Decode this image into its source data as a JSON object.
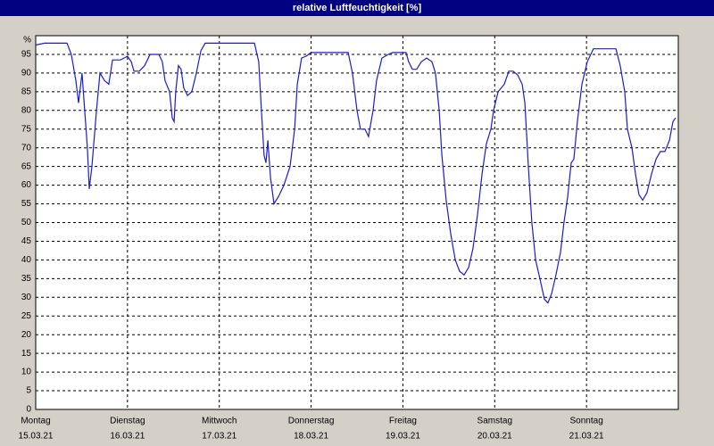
{
  "chart_data": {
    "type": "line",
    "title": "relative Luftfeuchtigkeit [%]",
    "y_unit": "%",
    "xlim": [
      0,
      168
    ],
    "xticks": [
      {
        "value": 0,
        "label": "Montag",
        "date": "15.03.21"
      },
      {
        "value": 24,
        "label": "Dienstag",
        "date": "16.03.21"
      },
      {
        "value": 48,
        "label": "Mittwoch",
        "date": "17.03.21"
      },
      {
        "value": 72,
        "label": "Donnerstag",
        "date": "18.03.21"
      },
      {
        "value": 96,
        "label": "Freitag",
        "date": "19.03.21"
      },
      {
        "value": 120,
        "label": "Samstag",
        "date": "20.03.21"
      },
      {
        "value": 144,
        "label": "Sonntag",
        "date": "21.03.21"
      }
    ],
    "ylim": [
      0,
      100
    ],
    "yticks": [
      0,
      5,
      10,
      15,
      20,
      25,
      30,
      35,
      40,
      45,
      50,
      55,
      60,
      65,
      70,
      75,
      80,
      85,
      90,
      95
    ],
    "grid": true,
    "series": [
      {
        "color": "#1c1cd0",
        "x": [
          0,
          2.3,
          8.2,
          9.3,
          10.5,
          11.2,
          12.1,
          12.8,
          13.5,
          14,
          14.7,
          15.9,
          16.8,
          18,
          19.1,
          20.1,
          22.2,
          24,
          25,
          25.7,
          27.1,
          28.5,
          29.9,
          32.2,
          33.1,
          33.8,
          35,
          35.7,
          36.2,
          36.6,
          37.3,
          38,
          38.7,
          39.7,
          40.8,
          42,
          43.2,
          44.3,
          57.2,
          58.3,
          59,
          59.7,
          60.2,
          60.7,
          61.4,
          62.3,
          63.5,
          64.9,
          66.5,
          67.7,
          68.4,
          69.5,
          70.7,
          72,
          81.7,
          82.8,
          84,
          84.9,
          86.1,
          87,
          88.2,
          89.1,
          90.5,
          92.2,
          93.3,
          96.8,
          97.5,
          98.5,
          99.6,
          100.8,
          102.2,
          103.6,
          104.5,
          105.5,
          106.2,
          107.3,
          108.5,
          109.7,
          110.8,
          112,
          113.2,
          114.3,
          115.5,
          116.7,
          117.8,
          119,
          119.7,
          120.9,
          122.5,
          123.7,
          124.8,
          126,
          127.2,
          127.9,
          128.8,
          129.7,
          130.7,
          131.8,
          133,
          133.9,
          134.9,
          136,
          137.2,
          138.1,
          139.1,
          140,
          140.7,
          141.6,
          142.8,
          144.2,
          145.8,
          151.7,
          152.8,
          154,
          154.7,
          155.9,
          156.8,
          157.7,
          158.7,
          159.8,
          161,
          162.2,
          163.3,
          164.5,
          165.7,
          166.6,
          167.3
        ],
        "values": [
          97.5,
          98,
          98,
          95,
          88,
          82,
          90,
          80,
          70,
          59,
          65,
          80,
          90,
          88,
          87,
          93.5,
          93.5,
          94.5,
          93,
          90.5,
          90.5,
          92,
          95,
          95,
          93,
          88,
          85,
          78,
          77,
          85,
          92,
          91,
          86,
          84,
          85,
          90,
          96,
          98,
          98,
          93,
          80,
          68,
          66,
          72,
          62,
          55,
          57,
          60,
          65,
          75,
          87,
          94,
          94.5,
          95.5,
          95.5,
          90,
          80,
          75,
          75,
          73,
          80,
          88,
          94,
          95,
          95.5,
          95.5,
          93,
          91,
          91,
          93,
          94,
          93,
          90,
          80,
          68,
          56,
          47,
          40,
          37,
          36,
          38,
          43,
          52,
          63,
          71,
          75,
          80,
          85,
          87,
          90.5,
          90.5,
          89.5,
          87,
          82,
          65,
          50,
          40,
          35,
          29.5,
          28.5,
          31,
          36,
          42,
          50,
          57,
          66,
          67,
          77,
          87,
          93,
          96.5,
          96.5,
          92,
          85,
          75,
          70,
          63,
          57.5,
          56,
          58,
          63,
          67,
          69,
          69,
          72,
          77,
          78
        ]
      }
    ]
  }
}
